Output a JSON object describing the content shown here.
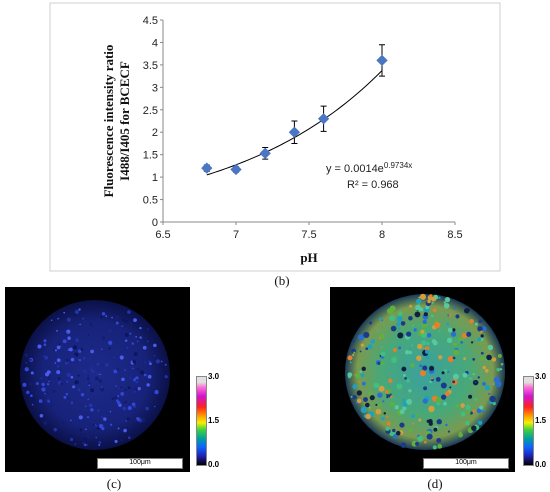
{
  "chart_data": {
    "type": "scatter",
    "title": "",
    "xlabel": "pH",
    "ylabel_line1": "Fluorescence intensity ratio",
    "ylabel_line2": "I488/I405 for BCECF",
    "xlim": [
      6.5,
      8.5
    ],
    "ylim": [
      0,
      4.5
    ],
    "xticks": [
      "6.5",
      "7",
      "7.5",
      "8",
      "8.5"
    ],
    "yticks": [
      "0",
      "0.5",
      "1",
      "1.5",
      "2",
      "2.5",
      "3",
      "3.5",
      "4",
      "4.5"
    ],
    "x": [
      6.8,
      7.0,
      7.2,
      7.4,
      7.6,
      8.0
    ],
    "y": [
      1.2,
      1.17,
      1.53,
      2.0,
      2.3,
      3.6
    ],
    "error": [
      0.07,
      0.06,
      0.13,
      0.25,
      0.28,
      0.35
    ],
    "fit": {
      "type": "exponential",
      "a": 0.0014,
      "b": 0.9734,
      "x_range": [
        6.8,
        8.0
      ]
    },
    "equation_prefix": "y = 0.0014e",
    "equation_exp": "0.9734x",
    "r2_text": "R² = 0.968",
    "marker_color": "#4a76c4",
    "grid": false
  },
  "captions": {
    "b": "(b)",
    "c": "(c)",
    "d": "(d)"
  },
  "panel_c": {
    "scale_label": "100μm",
    "colorbar_max": "3.0",
    "colorbar_mid": "1.5",
    "colorbar_min": "0.0"
  },
  "panel_d": {
    "scale_label": "100μm",
    "colorbar_max": "3.0",
    "colorbar_mid": "1.5",
    "colorbar_min": "0.0"
  }
}
